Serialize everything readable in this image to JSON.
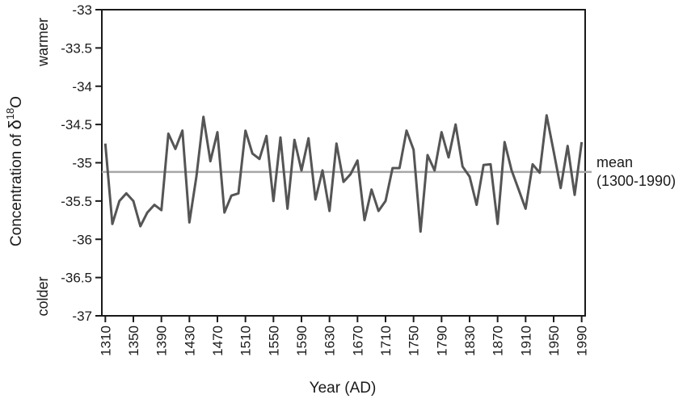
{
  "chart_data": {
    "type": "line",
    "xlabel": "Year (AD)",
    "ylabel": "Concentration of δ18O",
    "ylabel_parts": {
      "prefix": "Concentration of ",
      "symbol": "δ",
      "superscript": "18",
      "suffix": "O"
    },
    "y_top_note": "warmer",
    "y_bottom_note": "colder",
    "xlim": [
      1305,
      1995
    ],
    "ylim": [
      -37,
      -33
    ],
    "x_ticks": [
      1310,
      1350,
      1390,
      1430,
      1470,
      1510,
      1550,
      1590,
      1630,
      1670,
      1710,
      1750,
      1790,
      1830,
      1870,
      1910,
      1950,
      1990
    ],
    "y_ticks": [
      -33,
      -33.5,
      -34,
      -34.5,
      -35,
      -35.5,
      -36,
      -36.5,
      -37
    ],
    "grid": false,
    "mean": {
      "value": -35.12,
      "label_line1": "mean",
      "label_line2": "(1300-1990)"
    },
    "colors": {
      "series": "#555555",
      "mean_line": "#a6a6a6",
      "axis": "#1a1a1a"
    },
    "series": [
      {
        "x": [
          1310,
          1320,
          1330,
          1340,
          1350,
          1360,
          1370,
          1380,
          1390,
          1400,
          1410,
          1420,
          1430,
          1440,
          1450,
          1460,
          1470,
          1480,
          1490,
          1500,
          1510,
          1520,
          1530,
          1540,
          1550,
          1560,
          1570,
          1580,
          1590,
          1600,
          1610,
          1620,
          1630,
          1640,
          1650,
          1660,
          1670,
          1680,
          1690,
          1700,
          1710,
          1720,
          1730,
          1740,
          1750,
          1760,
          1770,
          1780,
          1790,
          1800,
          1810,
          1820,
          1830,
          1840,
          1850,
          1860,
          1870,
          1880,
          1890,
          1900,
          1910,
          1920,
          1930,
          1940,
          1950,
          1960,
          1970,
          1980,
          1990
        ],
        "y": [
          -34.75,
          -35.8,
          -35.5,
          -35.4,
          -35.5,
          -35.83,
          -35.65,
          -35.55,
          -35.62,
          -34.62,
          -34.82,
          -34.58,
          -35.78,
          -35.18,
          -34.4,
          -34.98,
          -34.6,
          -35.65,
          -35.43,
          -35.4,
          -34.58,
          -34.88,
          -34.95,
          -34.65,
          -35.5,
          -34.67,
          -35.6,
          -34.7,
          -35.1,
          -34.68,
          -35.48,
          -35.1,
          -35.63,
          -34.75,
          -35.25,
          -35.15,
          -34.97,
          -35.75,
          -35.35,
          -35.63,
          -35.5,
          -35.07,
          -35.07,
          -34.58,
          -34.83,
          -35.9,
          -34.9,
          -35.1,
          -34.6,
          -34.93,
          -34.5,
          -35.05,
          -35.18,
          -35.55,
          -35.03,
          -35.02,
          -35.8,
          -34.73,
          -35.1,
          -35.35,
          -35.6,
          -35.02,
          -35.13,
          -34.38,
          -34.85,
          -35.33,
          -34.78,
          -35.42,
          -34.73
        ]
      }
    ]
  }
}
